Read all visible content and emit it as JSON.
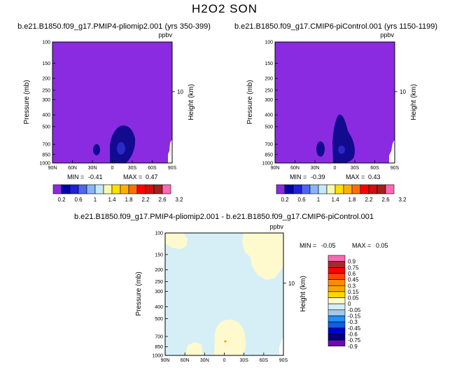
{
  "figure": {
    "title": "H2O2 SON"
  },
  "chart_data": [
    {
      "type": "contour",
      "title": "b.e21.B1850.f09_g17.PMIP4-pliomip2.001 (yrs 350-399)",
      "unit": "ppbv",
      "xlabel": "",
      "ylabel": "Pressure (mb)",
      "ylabel_right": "Height (km)",
      "x_ticks": [
        "90N",
        "60N",
        "30N",
        "0",
        "30S",
        "60S",
        "90S"
      ],
      "y_ticks": [
        "100",
        "150",
        "200",
        "250",
        "300",
        "400",
        "500",
        "700",
        "850",
        "1000"
      ],
      "right_ticks": [
        "10"
      ],
      "min_label": "MIN =",
      "min": "-0.41",
      "max_label": "MAX =",
      "max": "0.47",
      "levels": [
        "0.2",
        "0.6",
        "1",
        "1.4",
        "1.8",
        "2.2",
        "2.6",
        "3.2"
      ]
    },
    {
      "type": "contour",
      "title": "b.e21.B1850.f09_g17.CMIP6-piControl.001 (yrs 1150-1199)",
      "unit": "ppbv",
      "xlabel": "",
      "ylabel": "Pressure (mb)",
      "ylabel_right": "Height (km)",
      "x_ticks": [
        "90N",
        "60N",
        "30N",
        "0",
        "30S",
        "60S",
        "90S"
      ],
      "y_ticks": [
        "100",
        "150",
        "200",
        "250",
        "300",
        "400",
        "500",
        "700",
        "850",
        "1000"
      ],
      "right_ticks": [
        "10"
      ],
      "min_label": "MIN =",
      "min": "-0.39",
      "max_label": "MAX =",
      "max": "0.43",
      "levels": [
        "0.2",
        "0.6",
        "1",
        "1.4",
        "1.8",
        "2.2",
        "2.6",
        "3.2"
      ]
    },
    {
      "type": "contour",
      "title": "b.e21.B1850.f09_g17.PMIP4-pliomip2.001 - b.e21.B1850.f09_g17.CMIP6-piControl.001",
      "unit": "ppbv",
      "xlabel": "",
      "ylabel": "Pressure (mb)",
      "ylabel_right": "Height (km)",
      "x_ticks": [
        "90N",
        "60N",
        "30N",
        "0",
        "30S",
        "60S",
        "90S"
      ],
      "y_ticks": [
        "100",
        "150",
        "200",
        "250",
        "300",
        "400",
        "500",
        "700",
        "850",
        "1000"
      ],
      "right_ticks": [
        "10"
      ],
      "min_label": "MIN =",
      "min": "-0.05",
      "max_label": "MAX =",
      "max": "0.05",
      "levels": [
        "0.9",
        "0.75",
        "0.6",
        "0.45",
        "0.3",
        "0.15",
        "0.05",
        "0",
        "-0.05",
        "-0.15",
        "-0.3",
        "-0.45",
        "-0.6",
        "-0.75",
        "-0.9"
      ]
    }
  ],
  "colors": {
    "abs_fill": "#8a2be2",
    "abs_dark": "#120a8f",
    "abs_bar": [
      "#8a2be2",
      "#0000a8",
      "#2020d8",
      "#4f64f0",
      "#8ab4f8",
      "#c4e8f8",
      "#f8f8b0",
      "#ffe000",
      "#ffb000",
      "#ff7000",
      "#ff0000",
      "#d01010",
      "#a02020",
      "#ff69b4"
    ],
    "diff_bg": "#d6eff7",
    "diff_pos": "#fffacd",
    "diff_bar": [
      "#ff69b4",
      "#a52a2a",
      "#ff0000",
      "#ff4500",
      "#ff8c00",
      "#ffa500",
      "#ffd700",
      "#fffacd",
      "#d6eff7",
      "#a0c8f0",
      "#1e90ff",
      "#1060e0",
      "#0000cd",
      "#000080",
      "#6a0dad"
    ]
  }
}
